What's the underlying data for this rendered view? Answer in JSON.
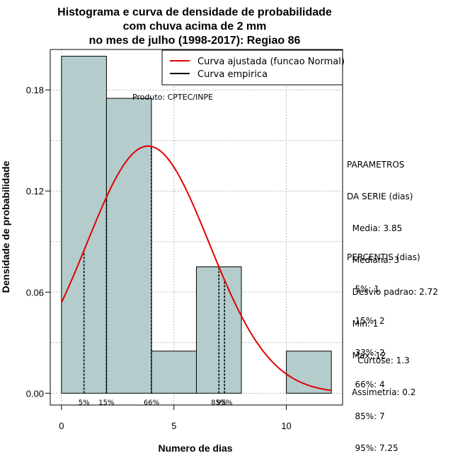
{
  "chart_data": {
    "type": "histogram",
    "title": [
      "Histograma e curva de densidade de probabilidade",
      "com chuva acima de 2 mm",
      "no mes de julho (1998-2017): Regiao 86"
    ],
    "xlabel": "Numero de dias",
    "ylabel": "Densidade de probabilidade",
    "xlim": [
      -0.5,
      12.5
    ],
    "ylim": [
      -0.007,
      0.204
    ],
    "xticks": [
      0,
      5,
      10
    ],
    "yticks": [
      0.0,
      0.06,
      0.12,
      0.18
    ],
    "ytick_labels": [
      "0.00",
      "0.06",
      "0.12",
      "0.18"
    ],
    "grid": true,
    "bin_edges": [
      0,
      2,
      4,
      6,
      8,
      10,
      12
    ],
    "densities": [
      0.2,
      0.175,
      0.025,
      0.075,
      0.0,
      0.025
    ],
    "bar_color": "#b4cccc",
    "series": [
      {
        "name": "Curva ajustada (funcao Normal)",
        "type": "line",
        "color": "#e00000",
        "distribution": "normal",
        "mean": 3.85,
        "sd": 2.72,
        "x_range": [
          0,
          12
        ]
      },
      {
        "name": "Curva empirica",
        "type": "line",
        "color": "#000000"
      }
    ],
    "legend_position": "top-right",
    "percentile_lines": [
      {
        "label": "5%",
        "x": 1
      },
      {
        "label": "15%",
        "x": 2
      },
      {
        "label": "66%",
        "x": 4
      },
      {
        "label": "85%",
        "x": 7
      },
      {
        "label": "95%",
        "x": 7.25
      }
    ],
    "annotation": "Produto: CPTEC/INPE"
  },
  "stats": {
    "parametros": [
      "PARAMETROS",
      "DA SERIE (dias)",
      "  Media: 3.85",
      "  Mediana: 3",
      "  Desvio padrao: 2.72",
      "  Min: 1",
      "  Max: 12"
    ],
    "percentis": [
      "PERCENTIS (dias)",
      "   5%: 1",
      "   15%: 2",
      "   33%: 2",
      "   66%: 4",
      "   85%: 7",
      "   95%: 7.25"
    ],
    "shape": [
      "Curtose: 1.3",
      "Assimetria: 0.2"
    ]
  }
}
